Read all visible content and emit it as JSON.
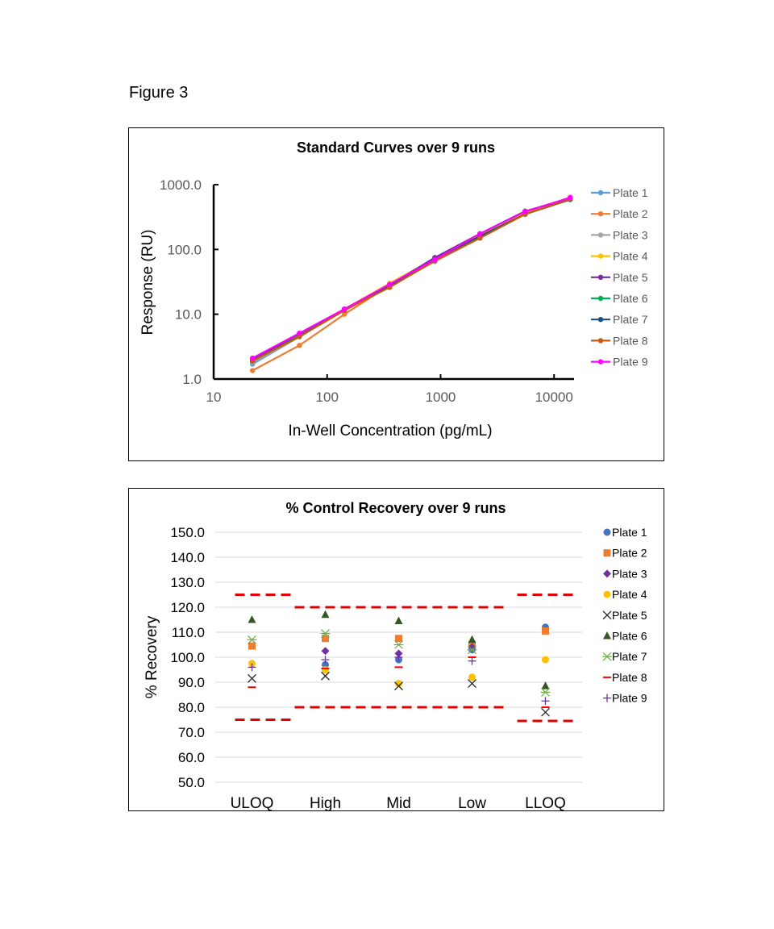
{
  "figure_label": "Figure 3",
  "colors": {
    "Plate 1": "#5B9BD5",
    "Plate 2": "#ED7D31",
    "Plate 3": "#A5A5A5",
    "Plate 4": "#FFC000",
    "Plate 5": "#7030A0",
    "Plate 6": "#00B050",
    "Plate 7": "#1F4E79",
    "Plate 8": "#C55A11",
    "Plate 9": "#FF00FF",
    "recovery_marker_colors": {
      "Plate 1": "#4472C4",
      "Plate 2": "#ED7D31",
      "Plate 3": "#7030A0",
      "Plate 4": "#FFC000",
      "Plate 5": "#262626",
      "Plate 6": "#375623",
      "Plate 7": "#70AD47",
      "Plate 8": "#FF0000",
      "Plate 9": "#7030A0"
    },
    "limit_line": "#E00000"
  },
  "chart_data": [
    {
      "type": "line",
      "title": "Standard Curves over 9 runs",
      "xlabel": "In-Well Concentration (pg/mL)",
      "ylabel": "Response (RU)",
      "x_scale": "log",
      "y_scale": "log",
      "xlim": [
        10,
        15000
      ],
      "ylim": [
        1,
        1000
      ],
      "x_tick_labels": [
        "10",
        "100",
        "1000",
        "10000"
      ],
      "y_tick_labels": [
        "1.0",
        "10.0",
        "100.0",
        "1000.0"
      ],
      "legend_position": "right",
      "x": [
        22,
        57,
        142,
        356,
        889,
        2222,
        5556,
        13889
      ],
      "series": [
        {
          "name": "Plate 1",
          "values": [
            1.7,
            4.5,
            11.5,
            27,
            68,
            160,
            360,
            600
          ]
        },
        {
          "name": "Plate 2",
          "values": [
            1.35,
            3.3,
            10,
            28,
            65,
            150,
            360,
            640
          ]
        },
        {
          "name": "Plate 3",
          "values": [
            1.8,
            4.5,
            11.5,
            27,
            65,
            150,
            350,
            600
          ]
        },
        {
          "name": "Plate 4",
          "values": [
            1.9,
            4.8,
            12,
            30,
            72,
            170,
            380,
            620
          ]
        },
        {
          "name": "Plate 5",
          "values": [
            2.0,
            5.0,
            12,
            28,
            75,
            175,
            390,
            610
          ]
        },
        {
          "name": "Plate 6",
          "values": [
            1.9,
            4.6,
            11.5,
            27,
            68,
            160,
            350,
            590
          ]
        },
        {
          "name": "Plate 7",
          "values": [
            1.9,
            4.6,
            11.5,
            27,
            68,
            160,
            350,
            590
          ]
        },
        {
          "name": "Plate 8",
          "values": [
            1.9,
            4.5,
            11.5,
            26,
            67,
            150,
            350,
            600
          ]
        },
        {
          "name": "Plate 9",
          "values": [
            2.1,
            5.1,
            12,
            29,
            70,
            175,
            385,
            630
          ]
        }
      ]
    },
    {
      "type": "scatter",
      "title": "% Control Recovery over 9 runs",
      "xlabel": "",
      "ylabel": "% Recovery",
      "ylim": [
        50,
        150
      ],
      "y_tick_labels": [
        "150.0",
        "140.0",
        "130.0",
        "120.0",
        "110.0",
        "100.0",
        "90.0",
        "80.0",
        "70.0",
        "60.0",
        "50.0"
      ],
      "grid": true,
      "legend_position": "right",
      "categories": [
        "ULOQ",
        "High",
        "Mid",
        "Low",
        "LLOQ"
      ],
      "series": [
        {
          "name": "Plate 1",
          "marker": "circle",
          "values": [
            null,
            97,
            99,
            103,
            112
          ]
        },
        {
          "name": "Plate 2",
          "marker": "square",
          "values": [
            104.5,
            107.5,
            107.5,
            105,
            110.5
          ]
        },
        {
          "name": "Plate 3",
          "marker": "diamond",
          "values": [
            null,
            102.5,
            101.5,
            104,
            null
          ]
        },
        {
          "name": "Plate 4",
          "marker": "circle",
          "values": [
            97.5,
            95,
            89.5,
            92,
            99
          ]
        },
        {
          "name": "Plate 5",
          "marker": "x",
          "values": [
            91.5,
            92.5,
            88.5,
            89.5,
            78
          ]
        },
        {
          "name": "Plate 6",
          "marker": "triangle",
          "values": [
            115,
            117,
            114.5,
            107,
            88.5
          ]
        },
        {
          "name": "Plate 7",
          "marker": "star",
          "values": [
            107,
            109.5,
            105,
            103,
            86
          ]
        },
        {
          "name": "Plate 8",
          "marker": "dash",
          "values": [
            88,
            95.5,
            96,
            100,
            80
          ]
        },
        {
          "name": "Plate 9",
          "marker": "plus",
          "values": [
            96,
            99,
            100,
            98.5,
            82.5
          ]
        }
      ],
      "limit_lines": [
        {
          "category_start": 0,
          "category_end": 0,
          "upper": 125,
          "lower": 75
        },
        {
          "category_start": 1,
          "category_end": 3,
          "upper": 120,
          "lower": 80
        },
        {
          "category_start": 4,
          "category_end": 4,
          "upper": 125,
          "lower": 74.5
        }
      ]
    }
  ]
}
